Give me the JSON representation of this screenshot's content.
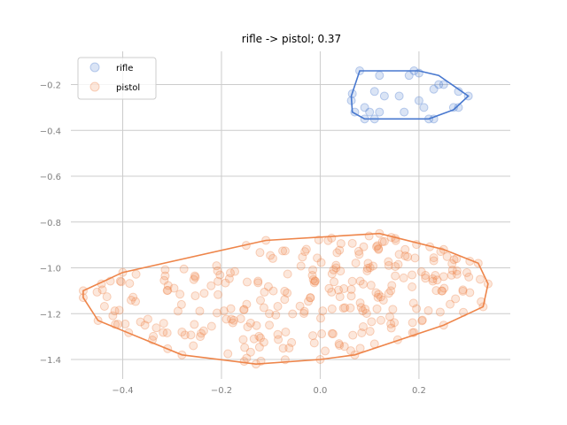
{
  "chart_data": {
    "type": "scatter",
    "title": "rifle -> pistol; 0.37",
    "xlabel": "",
    "ylabel": "",
    "xlim": [
      -0.505,
      0.385
    ],
    "ylim": [
      -1.485,
      -0.055
    ],
    "x_ticks": [
      -0.4,
      -0.2,
      0.0,
      0.2
    ],
    "y_ticks": [
      -0.2,
      -0.4,
      -0.6,
      -0.8,
      -1.0,
      -1.2,
      -1.4
    ],
    "x_tick_labels": [
      "−0.4",
      "−0.2",
      "0.0",
      "0.2"
    ],
    "y_tick_labels": [
      "−0.2",
      "−0.4",
      "−0.6",
      "−0.8",
      "−1.0",
      "−1.2",
      "−1.4"
    ],
    "grid": true,
    "legend_position": "top-left",
    "series": [
      {
        "name": "rifle",
        "color": "#4878cf",
        "hull": [
          [
            0.08,
            -0.14
          ],
          [
            0.2,
            -0.14
          ],
          [
            0.24,
            -0.16
          ],
          [
            0.3,
            -0.25
          ],
          [
            0.27,
            -0.31
          ],
          [
            0.22,
            -0.35
          ],
          [
            0.12,
            -0.35
          ],
          [
            0.09,
            -0.35
          ],
          [
            0.065,
            -0.32
          ],
          [
            0.063,
            -0.25
          ]
        ],
        "points": [
          [
            0.08,
            -0.14
          ],
          [
            0.12,
            -0.16
          ],
          [
            0.19,
            -0.14
          ],
          [
            0.2,
            -0.15
          ],
          [
            0.18,
            -0.16
          ],
          [
            0.24,
            -0.2
          ],
          [
            0.25,
            -0.2
          ],
          [
            0.23,
            -0.22
          ],
          [
            0.28,
            -0.23
          ],
          [
            0.3,
            -0.25
          ],
          [
            0.065,
            -0.24
          ],
          [
            0.063,
            -0.27
          ],
          [
            0.11,
            -0.23
          ],
          [
            0.13,
            -0.25
          ],
          [
            0.16,
            -0.25
          ],
          [
            0.2,
            -0.27
          ],
          [
            0.27,
            -0.3
          ],
          [
            0.28,
            -0.3
          ],
          [
            0.21,
            -0.3
          ],
          [
            0.07,
            -0.32
          ],
          [
            0.09,
            -0.35
          ],
          [
            0.1,
            -0.32
          ],
          [
            0.12,
            -0.32
          ],
          [
            0.11,
            -0.35
          ],
          [
            0.17,
            -0.32
          ],
          [
            0.22,
            -0.35
          ],
          [
            0.23,
            -0.35
          ],
          [
            0.09,
            -0.3
          ]
        ]
      },
      {
        "name": "pistol",
        "color": "#ee854a",
        "hull": [
          [
            -0.48,
            -1.1
          ],
          [
            -0.4,
            -1.02
          ],
          [
            -0.11,
            -0.88
          ],
          [
            0.12,
            -0.85
          ],
          [
            0.25,
            -0.92
          ],
          [
            0.32,
            -0.98
          ],
          [
            0.34,
            -1.07
          ],
          [
            0.33,
            -1.17
          ],
          [
            0.25,
            -1.25
          ],
          [
            0.07,
            -1.38
          ],
          [
            0.0,
            -1.4
          ],
          [
            -0.13,
            -1.42
          ],
          [
            -0.28,
            -1.38
          ],
          [
            -0.45,
            -1.23
          ],
          [
            -0.48,
            -1.13
          ]
        ]
      }
    ]
  }
}
